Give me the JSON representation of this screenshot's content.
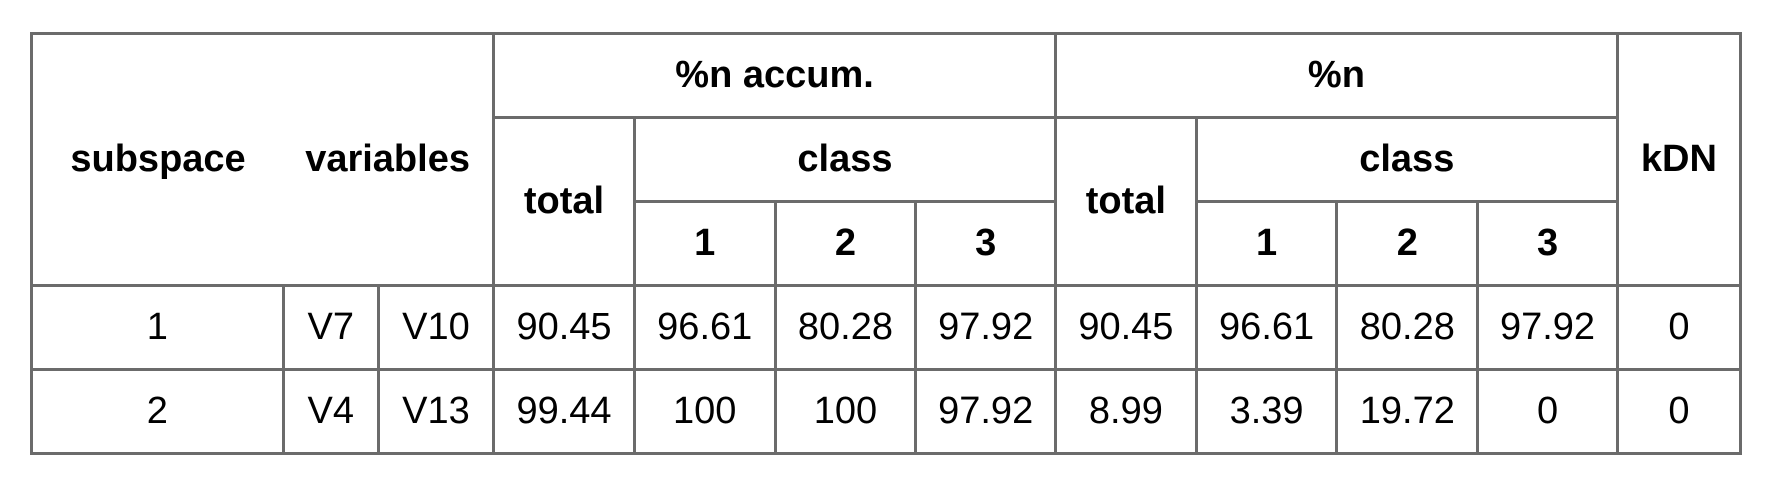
{
  "headers": {
    "subspace": "subspace",
    "variables": "variables",
    "accum": "%n accum.",
    "n": "%n",
    "kdn": "kDN",
    "total": "total",
    "class": "class",
    "class_ids": [
      "1",
      "2",
      "3"
    ]
  },
  "rows": [
    {
      "subspace": "1",
      "var1": "V7",
      "var2": "V10",
      "accum": [
        "90.45",
        "96.61",
        "80.28",
        "97.92"
      ],
      "n": [
        "90.45",
        "96.61",
        "80.28",
        "97.92"
      ],
      "kdn": "0"
    },
    {
      "subspace": "2",
      "var1": "V4",
      "var2": "V13",
      "accum": [
        "99.44",
        "100",
        "100",
        "97.92"
      ],
      "n": [
        "8.99",
        "3.39",
        "19.72",
        "0"
      ],
      "kdn": "0"
    }
  ]
}
